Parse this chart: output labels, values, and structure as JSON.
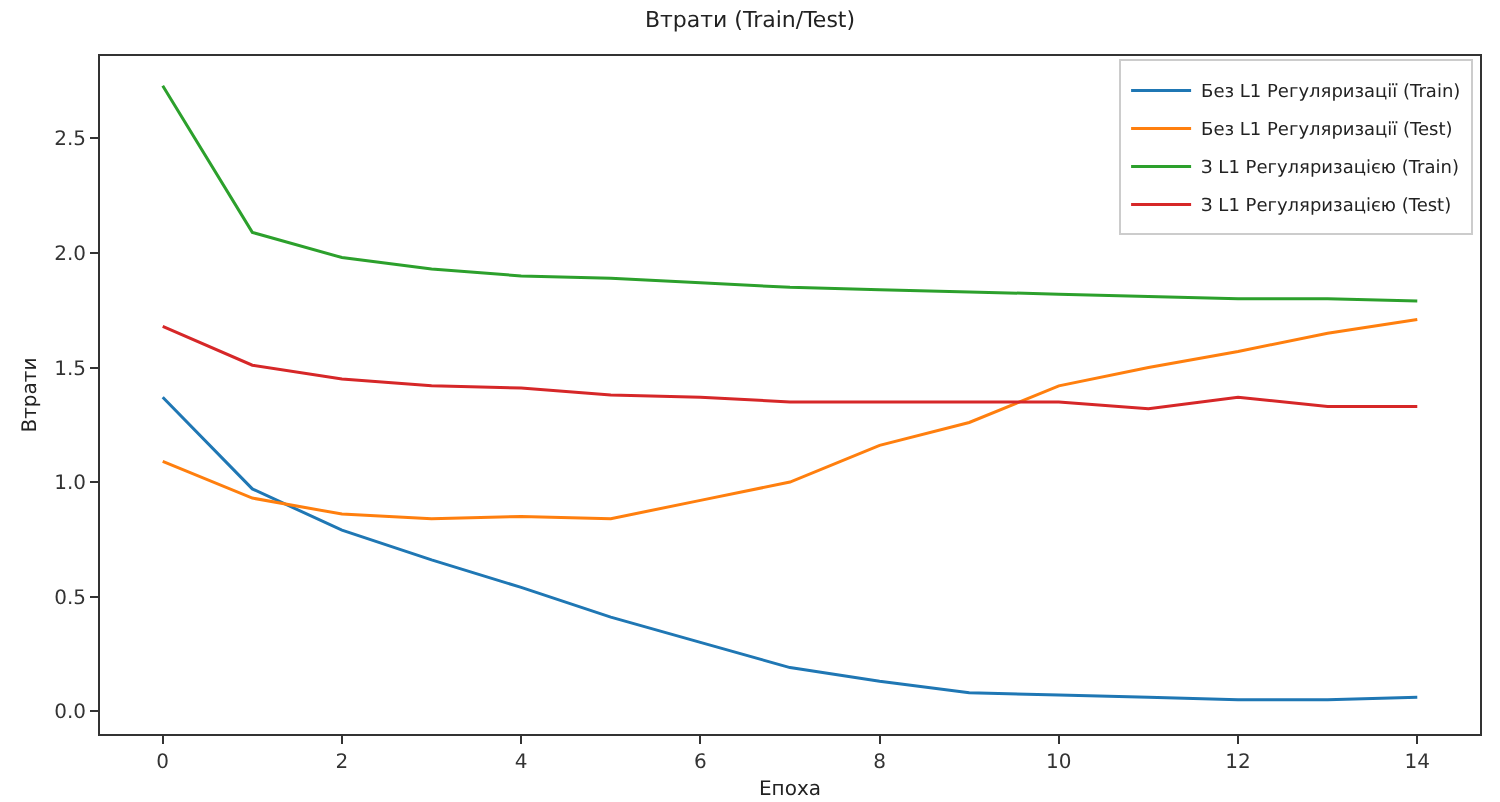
{
  "chart_data": {
    "type": "line",
    "title": "Втрати (Train/Test)",
    "xlabel": "Епоха",
    "ylabel": "Втрати",
    "x": [
      0,
      1,
      2,
      3,
      4,
      5,
      6,
      7,
      8,
      9,
      10,
      11,
      12,
      13,
      14
    ],
    "series": [
      {
        "name": "Без L1 Регуляризації (Train)",
        "color": "#1f77b4",
        "values": [
          1.37,
          0.97,
          0.79,
          0.66,
          0.54,
          0.41,
          0.3,
          0.19,
          0.13,
          0.08,
          0.07,
          0.06,
          0.05,
          0.05,
          0.06
        ]
      },
      {
        "name": "Без L1 Регуляризації (Test)",
        "color": "#ff7f0e",
        "values": [
          1.09,
          0.93,
          0.86,
          0.84,
          0.85,
          0.84,
          0.92,
          1.0,
          1.16,
          1.26,
          1.42,
          1.5,
          1.57,
          1.65,
          1.71
        ]
      },
      {
        "name": "З L1 Регуляризацією (Train)",
        "color": "#2ca02c",
        "values": [
          2.73,
          2.09,
          1.98,
          1.93,
          1.9,
          1.89,
          1.87,
          1.85,
          1.84,
          1.83,
          1.82,
          1.81,
          1.8,
          1.8,
          1.79
        ]
      },
      {
        "name": "З L1 Регуляризацією (Test)",
        "color": "#d62728",
        "values": [
          1.68,
          1.51,
          1.45,
          1.42,
          1.41,
          1.38,
          1.37,
          1.35,
          1.35,
          1.35,
          1.35,
          1.32,
          1.37,
          1.33,
          1.33
        ]
      }
    ],
    "xlim": [
      -0.7,
      14.7
    ],
    "xticks": [
      0,
      2,
      4,
      6,
      8,
      10,
      12,
      14
    ],
    "ylim": [
      -0.1,
      2.86
    ],
    "yticks": [
      {
        "value": 0,
        "label": "0.0"
      },
      0.5,
      {
        "value": 1,
        "label": "1.0"
      },
      1.5,
      {
        "value": 2,
        "label": "2.0"
      },
      2.5
    ],
    "grid": false,
    "legend": "top right",
    "marker": "none",
    "line_style": "solid"
  }
}
